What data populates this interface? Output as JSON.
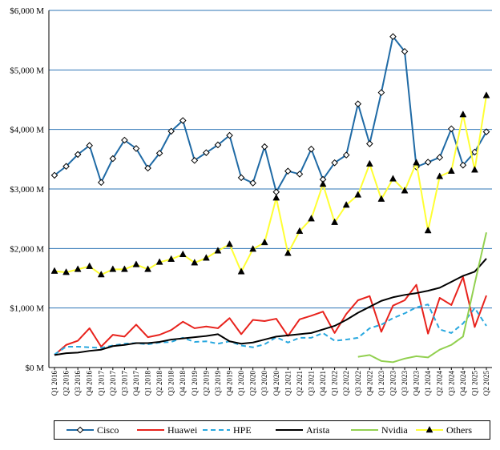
{
  "chart_data": {
    "type": "line",
    "title": "",
    "xlabel": "",
    "ylabel": "",
    "ylim": [
      0,
      6000
    ],
    "yticks": [
      0,
      1000,
      2000,
      3000,
      4000,
      5000,
      6000
    ],
    "ytick_labels": [
      "$0 M",
      "$1,000 M",
      "$2,000 M",
      "$3,000 M",
      "$4,000 M",
      "$5,000 M",
      "$6,000 M"
    ],
    "grid": "horizontal",
    "legend_position": "bottom",
    "categories": [
      "Q1 2016",
      "Q2 2016",
      "Q3 2016",
      "Q4 2016",
      "Q1 2017",
      "Q2 2017",
      "Q3 2017",
      "Q4 2017",
      "Q1 2018",
      "Q2 2018",
      "Q3 2018",
      "Q4 2018",
      "Q1 2019",
      "Q2 2019",
      "Q3 2019",
      "Q4 2019",
      "Q1 2020",
      "Q2 2020",
      "Q3 2020",
      "Q4 2020",
      "Q1 2021",
      "Q2 2021",
      "Q3 2021",
      "Q4 2021",
      "Q1 2022",
      "Q2 2022",
      "Q3 2022",
      "Q4 2022",
      "Q1 2023",
      "Q2 2023",
      "Q3 2023",
      "Q4 2023",
      "Q1 2024",
      "Q2 2024",
      "Q3 2024",
      "Q4 2024",
      "Q1 2025",
      "Q2 2025"
    ],
    "series": [
      {
        "name": "Cisco",
        "color": "#1f6aa5",
        "style": "solid",
        "marker": "diamond",
        "values": [
          3230,
          3380,
          3580,
          3730,
          3110,
          3510,
          3820,
          3680,
          3350,
          3600,
          3970,
          4150,
          3480,
          3610,
          3740,
          3900,
          3190,
          3100,
          3710,
          2950,
          3300,
          3250,
          3670,
          3160,
          3440,
          3570,
          4430,
          3760,
          4620,
          5560,
          5310,
          3370,
          3450,
          3530,
          4010,
          3400,
          3620,
          3960
        ]
      },
      {
        "name": "Huawei",
        "color": "#e8231d",
        "style": "solid",
        "marker": "none",
        "values": [
          210,
          380,
          450,
          660,
          350,
          550,
          520,
          720,
          510,
          550,
          630,
          770,
          660,
          690,
          660,
          830,
          560,
          800,
          780,
          820,
          530,
          810,
          870,
          940,
          580,
          900,
          1130,
          1200,
          600,
          1040,
          1130,
          1390,
          570,
          1170,
          1050,
          1520,
          680,
          1210
        ]
      },
      {
        "name": "HPE",
        "color": "#29a8df",
        "style": "dashed",
        "marker": "none",
        "values": [
          220,
          350,
          350,
          340,
          330,
          370,
          400,
          410,
          390,
          420,
          430,
          500,
          430,
          440,
          400,
          440,
          370,
          340,
          390,
          510,
          420,
          500,
          500,
          580,
          450,
          470,
          500,
          660,
          720,
          830,
          910,
          1010,
          1060,
          640,
          580,
          740,
          1000,
          700
        ]
      },
      {
        "name": "Arista",
        "color": "#000000",
        "style": "solid",
        "marker": "none",
        "values": [
          210,
          240,
          250,
          280,
          300,
          360,
          380,
          410,
          410,
          430,
          470,
          490,
          510,
          530,
          560,
          440,
          400,
          420,
          470,
          520,
          540,
          560,
          580,
          640,
          700,
          800,
          920,
          1020,
          1120,
          1180,
          1220,
          1250,
          1290,
          1340,
          1440,
          1540,
          1610,
          1830
        ]
      },
      {
        "name": "Nvidia",
        "color": "#92d050",
        "style": "solid",
        "marker": "none",
        "values": [
          null,
          null,
          null,
          null,
          null,
          null,
          null,
          null,
          null,
          null,
          null,
          null,
          null,
          null,
          null,
          null,
          null,
          null,
          null,
          null,
          null,
          null,
          null,
          null,
          null,
          null,
          180,
          210,
          110,
          90,
          150,
          190,
          170,
          300,
          380,
          520,
          1410,
          2270
        ]
      },
      {
        "name": "Others",
        "color": "#ffff33",
        "style": "solid",
        "marker": "triangle",
        "values": [
          1620,
          1600,
          1650,
          1700,
          1560,
          1650,
          1650,
          1730,
          1650,
          1770,
          1820,
          1900,
          1760,
          1840,
          1960,
          2070,
          1610,
          1990,
          2100,
          2850,
          1920,
          2290,
          2500,
          3080,
          2440,
          2730,
          2900,
          3420,
          2830,
          3170,
          2970,
          3440,
          2300,
          3210,
          3300,
          4250,
          3320,
          4570
        ]
      }
    ]
  }
}
